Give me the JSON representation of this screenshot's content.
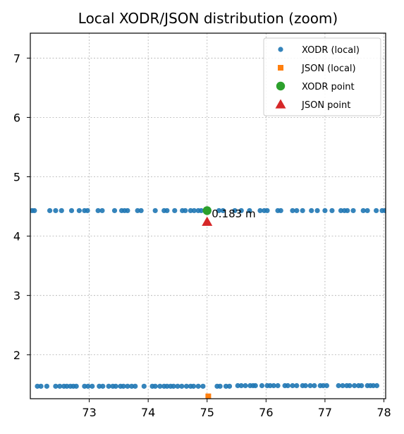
{
  "chart_data": {
    "type": "scatter",
    "title": "Local XODR/JSON distribution (zoom)",
    "xlabel": "",
    "ylabel": "",
    "xlim": [
      72.0,
      78.03
    ],
    "ylim": [
      1.26,
      7.42
    ],
    "x_ticks": [
      73,
      74,
      75,
      76,
      77,
      78
    ],
    "y_ticks": [
      2,
      3,
      4,
      5,
      6,
      7
    ],
    "grid": true,
    "legend_position": "top-right",
    "annotation": {
      "text": "0.183 m",
      "x": 75.03,
      "y": 4.33
    },
    "series": [
      {
        "name": "XODR (local)",
        "marker": "circle-small",
        "color": "#1f77b4",
        "points": [
          [
            72.03,
            4.43
          ],
          [
            72.07,
            4.43
          ],
          [
            72.33,
            4.43
          ],
          [
            72.43,
            4.43
          ],
          [
            72.53,
            4.43
          ],
          [
            72.7,
            4.43
          ],
          [
            72.83,
            4.43
          ],
          [
            72.92,
            4.43
          ],
          [
            72.97,
            4.43
          ],
          [
            73.15,
            4.43
          ],
          [
            73.22,
            4.43
          ],
          [
            73.43,
            4.43
          ],
          [
            73.55,
            4.43
          ],
          [
            73.6,
            4.43
          ],
          [
            73.65,
            4.43
          ],
          [
            73.82,
            4.43
          ],
          [
            73.88,
            4.43
          ],
          [
            74.12,
            4.43
          ],
          [
            74.27,
            4.43
          ],
          [
            74.32,
            4.43
          ],
          [
            74.45,
            4.43
          ],
          [
            74.58,
            4.43
          ],
          [
            74.63,
            4.43
          ],
          [
            74.72,
            4.43
          ],
          [
            74.78,
            4.43
          ],
          [
            74.85,
            4.43
          ],
          [
            74.9,
            4.43
          ],
          [
            75.2,
            4.43
          ],
          [
            75.27,
            4.43
          ],
          [
            75.47,
            4.43
          ],
          [
            75.58,
            4.43
          ],
          [
            75.72,
            4.43
          ],
          [
            75.9,
            4.43
          ],
          [
            75.97,
            4.43
          ],
          [
            76.02,
            4.43
          ],
          [
            76.2,
            4.43
          ],
          [
            76.25,
            4.43
          ],
          [
            76.45,
            4.43
          ],
          [
            76.52,
            4.43
          ],
          [
            76.62,
            4.43
          ],
          [
            76.77,
            4.43
          ],
          [
            76.87,
            4.43
          ],
          [
            77.0,
            4.43
          ],
          [
            77.12,
            4.43
          ],
          [
            77.27,
            4.43
          ],
          [
            77.33,
            4.43
          ],
          [
            77.38,
            4.43
          ],
          [
            77.48,
            4.43
          ],
          [
            77.65,
            4.43
          ],
          [
            77.72,
            4.43
          ],
          [
            77.87,
            4.43
          ],
          [
            77.97,
            4.43
          ],
          [
            78.02,
            4.43
          ],
          [
            72.12,
            1.47
          ],
          [
            72.18,
            1.47
          ],
          [
            72.28,
            1.47
          ],
          [
            72.43,
            1.47
          ],
          [
            72.5,
            1.47
          ],
          [
            72.57,
            1.47
          ],
          [
            72.62,
            1.47
          ],
          [
            72.68,
            1.47
          ],
          [
            72.73,
            1.47
          ],
          [
            72.78,
            1.47
          ],
          [
            72.92,
            1.47
          ],
          [
            72.98,
            1.47
          ],
          [
            73.05,
            1.47
          ],
          [
            73.17,
            1.47
          ],
          [
            73.23,
            1.47
          ],
          [
            73.33,
            1.47
          ],
          [
            73.4,
            1.47
          ],
          [
            73.45,
            1.47
          ],
          [
            73.53,
            1.47
          ],
          [
            73.58,
            1.47
          ],
          [
            73.65,
            1.47
          ],
          [
            73.72,
            1.47
          ],
          [
            73.78,
            1.47
          ],
          [
            73.93,
            1.47
          ],
          [
            74.07,
            1.47
          ],
          [
            74.12,
            1.47
          ],
          [
            74.2,
            1.47
          ],
          [
            74.27,
            1.47
          ],
          [
            74.32,
            1.47
          ],
          [
            74.38,
            1.47
          ],
          [
            74.43,
            1.47
          ],
          [
            74.5,
            1.47
          ],
          [
            74.57,
            1.47
          ],
          [
            74.65,
            1.47
          ],
          [
            74.72,
            1.47
          ],
          [
            74.77,
            1.47
          ],
          [
            74.85,
            1.47
          ],
          [
            74.93,
            1.47
          ],
          [
            75.17,
            1.47
          ],
          [
            75.22,
            1.47
          ],
          [
            75.32,
            1.47
          ],
          [
            75.38,
            1.47
          ],
          [
            75.52,
            1.48
          ],
          [
            75.58,
            1.48
          ],
          [
            75.65,
            1.48
          ],
          [
            75.73,
            1.48
          ],
          [
            75.78,
            1.48
          ],
          [
            75.82,
            1.48
          ],
          [
            75.93,
            1.48
          ],
          [
            76.02,
            1.48
          ],
          [
            76.07,
            1.48
          ],
          [
            76.13,
            1.48
          ],
          [
            76.2,
            1.48
          ],
          [
            76.32,
            1.48
          ],
          [
            76.37,
            1.48
          ],
          [
            76.45,
            1.48
          ],
          [
            76.52,
            1.48
          ],
          [
            76.62,
            1.48
          ],
          [
            76.67,
            1.48
          ],
          [
            76.75,
            1.48
          ],
          [
            76.82,
            1.48
          ],
          [
            76.92,
            1.48
          ],
          [
            76.97,
            1.48
          ],
          [
            77.03,
            1.48
          ],
          [
            77.23,
            1.48
          ],
          [
            77.3,
            1.48
          ],
          [
            77.37,
            1.48
          ],
          [
            77.42,
            1.48
          ],
          [
            77.5,
            1.48
          ],
          [
            77.57,
            1.48
          ],
          [
            77.62,
            1.48
          ],
          [
            77.72,
            1.48
          ],
          [
            77.77,
            1.48
          ],
          [
            77.82,
            1.48
          ],
          [
            77.88,
            1.48
          ]
        ]
      },
      {
        "name": "JSON (local)",
        "marker": "square-small",
        "color": "#ff7f0e",
        "points": [
          [
            75.02,
            1.3
          ]
        ]
      },
      {
        "name": "XODR point",
        "marker": "circle-large",
        "color": "#2ca02c",
        "points": [
          [
            75.0,
            4.43
          ]
        ]
      },
      {
        "name": "JSON point",
        "marker": "triangle-large",
        "color": "#d62728",
        "points": [
          [
            75.0,
            4.24
          ]
        ]
      }
    ]
  }
}
